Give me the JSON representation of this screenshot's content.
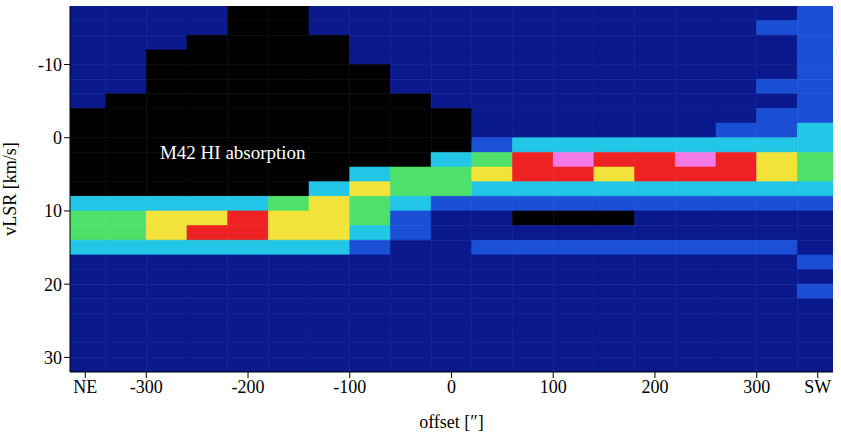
{
  "chart_data": {
    "type": "heatmap",
    "x_label": "offset [″]",
    "y_label": "vLSR [km/s]",
    "grid": false,
    "xlim": [
      -375,
      375
    ],
    "ylim": [
      -18,
      32
    ],
    "xticks": [
      {
        "value": -360,
        "label": "NE"
      },
      -300,
      -200,
      -100,
      0,
      100,
      200,
      300,
      {
        "value": 360,
        "label": "SW"
      }
    ],
    "yticks": [
      -10,
      0,
      10,
      20,
      30
    ],
    "zlim": [
      -3,
      6
    ],
    "x": [
      -360,
      -320,
      -280,
      -240,
      -200,
      -160,
      -120,
      -80,
      -40,
      0,
      40,
      80,
      120,
      160,
      200,
      240,
      280,
      320,
      360
    ],
    "y": [
      -17,
      -15,
      -13,
      -11,
      -9,
      -7,
      -5,
      -3,
      -1,
      1,
      3,
      5,
      7,
      9,
      11,
      13,
      15,
      17,
      19,
      21,
      23,
      25,
      27,
      29,
      31
    ],
    "cells": [
      [
        0,
        0,
        0,
        0,
        -3,
        -3,
        0,
        0,
        0,
        0,
        0,
        0,
        0,
        0,
        0,
        0,
        0,
        0,
        1
      ],
      [
        0,
        0,
        0,
        0,
        -3,
        -3,
        0,
        0,
        0,
        0,
        0,
        0,
        0,
        0,
        0,
        0,
        0,
        1,
        1
      ],
      [
        0,
        0,
        0,
        -3,
        -3,
        -3,
        -3,
        0,
        0,
        0,
        0,
        0,
        0,
        0,
        0,
        0,
        0,
        0,
        1
      ],
      [
        0,
        0,
        -3,
        -3,
        -3,
        -3,
        -3,
        0,
        0,
        0,
        0,
        0,
        0,
        0,
        0,
        0,
        0,
        0,
        1
      ],
      [
        0,
        0,
        -3,
        -3,
        -3,
        -3,
        -3,
        -3,
        0,
        0,
        0,
        0,
        0,
        0,
        0,
        0,
        0,
        0,
        1
      ],
      [
        0,
        0,
        -3,
        -3,
        -3,
        -3,
        -3,
        -3,
        0,
        0,
        0,
        0,
        0,
        0,
        0,
        0,
        0,
        1,
        1
      ],
      [
        0,
        -3,
        -3,
        -3,
        -3,
        -3,
        -3,
        -3,
        -3,
        0,
        0,
        0,
        0,
        0,
        0,
        0,
        0,
        0,
        1
      ],
      [
        -3,
        -3,
        -3,
        -3,
        -3,
        -3,
        -3,
        -3,
        -3,
        -3,
        0,
        0,
        0,
        0,
        0,
        0,
        0,
        1,
        1
      ],
      [
        -3,
        -3,
        -3,
        -3,
        -3,
        -3,
        -3,
        -3,
        -3,
        -3,
        0,
        0,
        0,
        0,
        0,
        0,
        1,
        1,
        2
      ],
      [
        -3,
        -3,
        -3,
        -3,
        -3,
        -3,
        -3,
        -3,
        -3,
        -3,
        1,
        2,
        2,
        2,
        2,
        2,
        2,
        2,
        2
      ],
      [
        -3,
        -3,
        -3,
        -3,
        -3,
        -3,
        -3,
        -3,
        -3,
        2,
        3,
        5,
        6,
        5,
        5,
        6,
        5,
        4,
        3
      ],
      [
        -3,
        -3,
        -3,
        -3,
        -3,
        -3,
        -3,
        2,
        3,
        3,
        4,
        5,
        5,
        4,
        5,
        5,
        5,
        4,
        3
      ],
      [
        -3,
        -3,
        -3,
        -3,
        -3,
        -3,
        2,
        4,
        3,
        3,
        2,
        2,
        2,
        2,
        2,
        2,
        2,
        2,
        2
      ],
      [
        2,
        2,
        2,
        2,
        2,
        3,
        4,
        3,
        2,
        1,
        1,
        1,
        1,
        1,
        1,
        1,
        1,
        1,
        1
      ],
      [
        3,
        3,
        4,
        4,
        5,
        4,
        4,
        3,
        1,
        0,
        0,
        -3,
        -3,
        -3,
        0,
        0,
        0,
        0,
        0
      ],
      [
        3,
        3,
        4,
        5,
        5,
        4,
        4,
        2,
        1,
        0,
        0,
        0,
        0,
        0,
        0,
        0,
        0,
        0,
        0
      ],
      [
        2,
        2,
        2,
        2,
        2,
        2,
        2,
        1,
        0,
        0,
        1,
        1,
        1,
        1,
        1,
        1,
        1,
        1,
        0
      ],
      [
        0,
        0,
        0,
        0,
        0,
        0,
        0,
        0,
        0,
        0,
        0,
        0,
        0,
        0,
        0,
        0,
        0,
        0,
        1
      ],
      [
        0,
        0,
        0,
        0,
        0,
        0,
        0,
        0,
        0,
        0,
        0,
        0,
        0,
        0,
        0,
        0,
        0,
        0,
        0
      ],
      [
        0,
        0,
        0,
        0,
        0,
        0,
        0,
        0,
        0,
        0,
        0,
        0,
        0,
        0,
        0,
        0,
        0,
        0,
        1
      ],
      [
        0,
        0,
        0,
        0,
        0,
        0,
        0,
        0,
        0,
        0,
        0,
        0,
        0,
        0,
        0,
        0,
        0,
        0,
        0
      ],
      [
        0,
        0,
        0,
        0,
        0,
        0,
        0,
        0,
        0,
        0,
        0,
        0,
        0,
        0,
        0,
        0,
        0,
        0,
        0
      ],
      [
        0,
        0,
        0,
        0,
        0,
        0,
        0,
        0,
        0,
        0,
        0,
        0,
        0,
        0,
        0,
        0,
        0,
        0,
        0
      ],
      [
        0,
        0,
        0,
        0,
        0,
        0,
        0,
        0,
        0,
        0,
        0,
        0,
        0,
        0,
        0,
        0,
        0,
        0,
        0
      ],
      [
        0,
        0,
        0,
        0,
        0,
        0,
        0,
        0,
        0,
        0,
        0,
        0,
        0,
        0,
        0,
        0,
        0,
        0,
        0
      ]
    ],
    "annotations": [
      {
        "text": "M42 HI absorption",
        "x": -215,
        "y": 2
      }
    ]
  }
}
